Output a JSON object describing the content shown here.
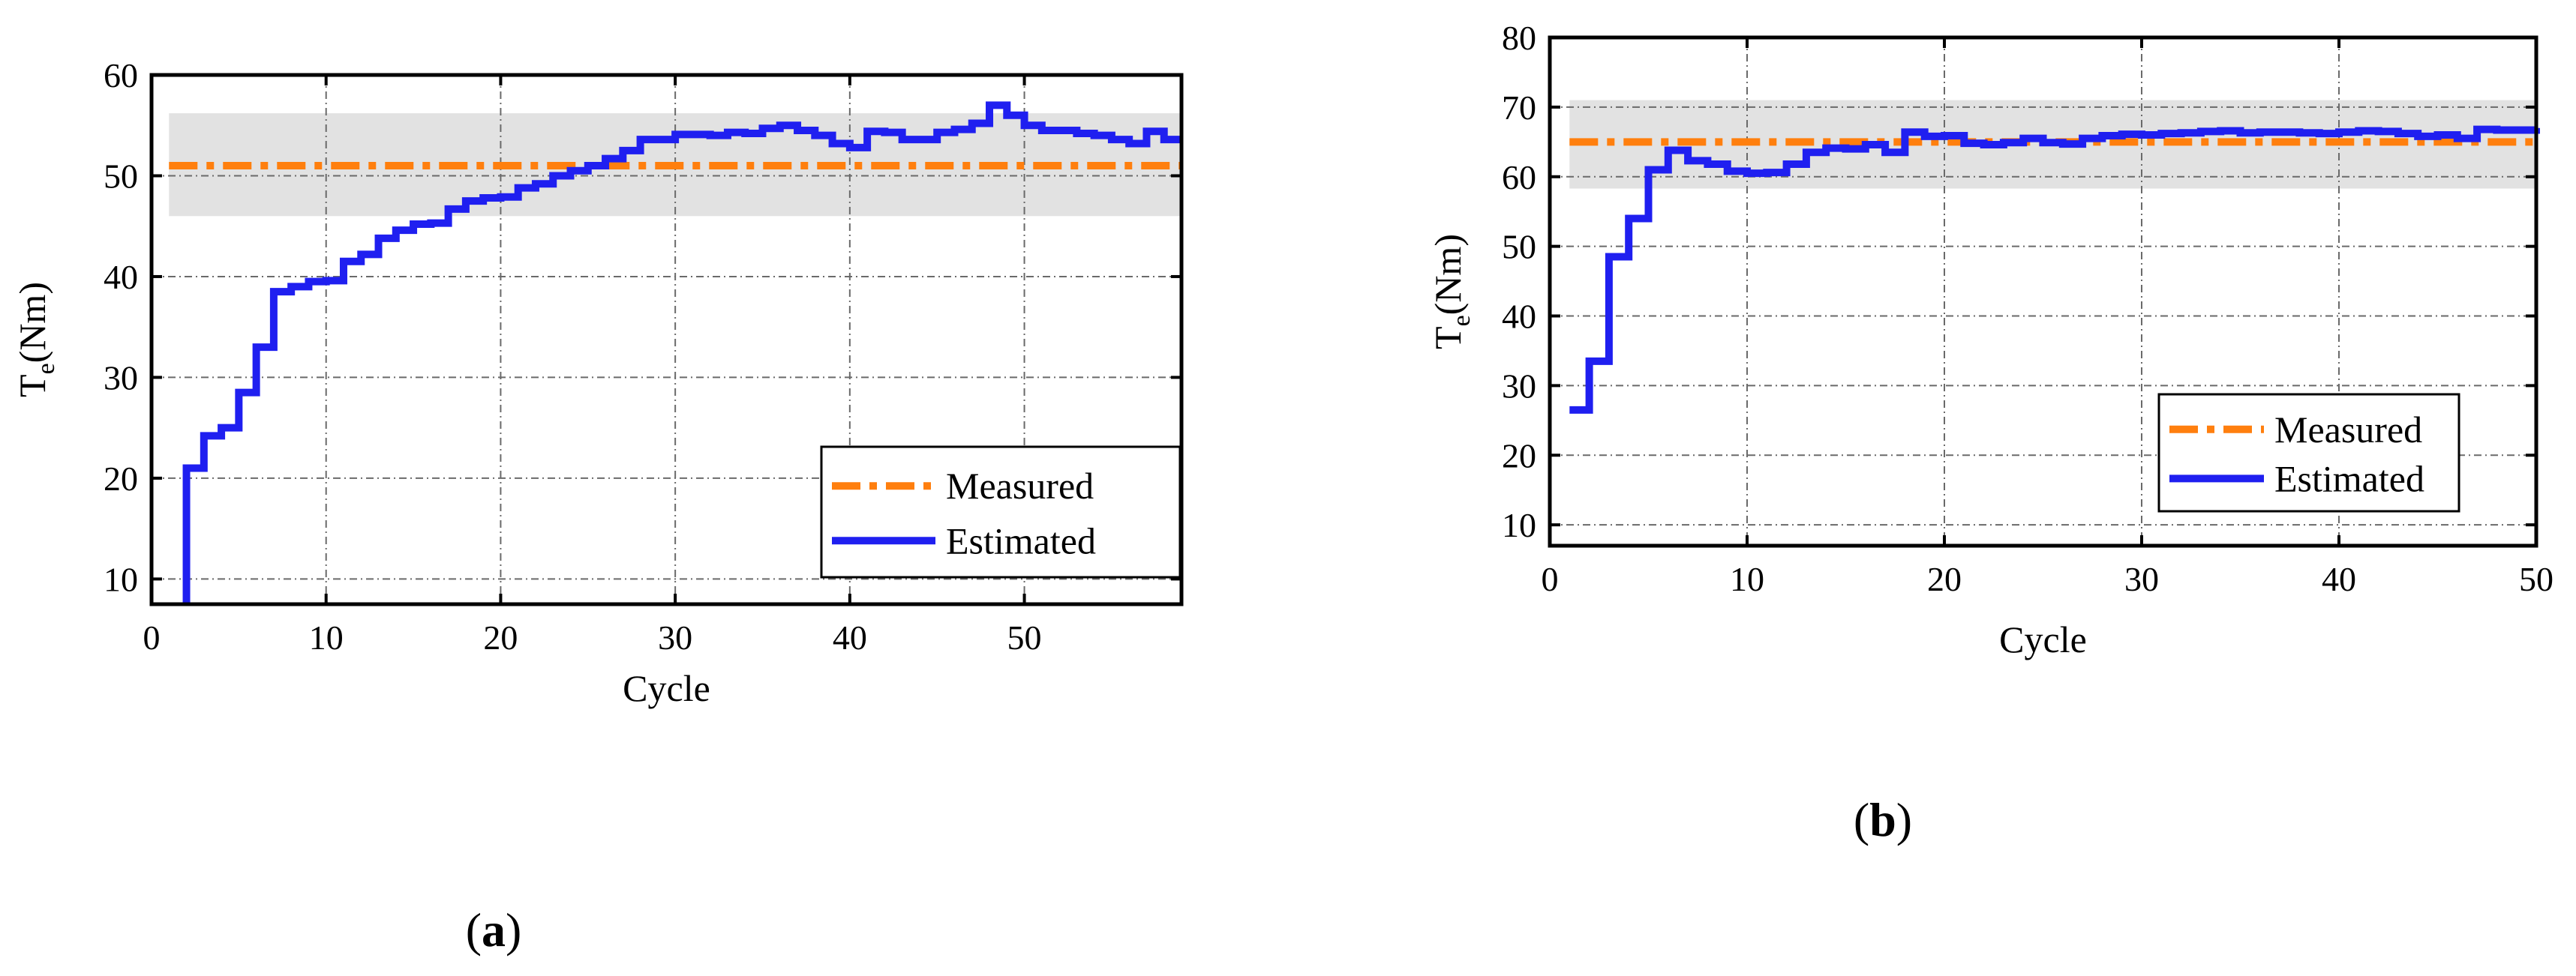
{
  "chart_data": [
    {
      "type": "line",
      "panel_label": "a",
      "xlabel": "Cycle",
      "ylabel_main": "T",
      "ylabel_sub": "e",
      "ylabel_unit": "(Nm)",
      "xlim": [
        0,
        59
      ],
      "ylim": [
        7.5,
        60
      ],
      "xticks": [
        0,
        10,
        20,
        30,
        40,
        50
      ],
      "yticks": [
        10,
        20,
        30,
        40,
        50,
        60
      ],
      "grid": true,
      "band": {
        "low": 46,
        "high": 56.2,
        "x_start": 1,
        "x_end": 59,
        "color": "#e2e2e2"
      },
      "legend_position": "bottom-right",
      "series": [
        {
          "name": "Measured",
          "style": "dash-dot",
          "color": "#ff7f0e",
          "x": [
            1,
            59
          ],
          "values": [
            51,
            51
          ]
        },
        {
          "name": "Estimated",
          "style": "step",
          "color": "#1f1ff0",
          "x": [
            2,
            3,
            4,
            5,
            6,
            7,
            8,
            9,
            10,
            11,
            12,
            13,
            14,
            15,
            16,
            17,
            18,
            19,
            20,
            21,
            22,
            23,
            24,
            25,
            26,
            27,
            28,
            29,
            30,
            31,
            32,
            33,
            34,
            35,
            36,
            37,
            38,
            39,
            40,
            41,
            42,
            43,
            44,
            45,
            46,
            47,
            48,
            49,
            50,
            51,
            52,
            53,
            54,
            55,
            56,
            57,
            58,
            59
          ],
          "values": [
            21,
            24.2,
            25,
            28.5,
            33,
            38.5,
            39,
            39.5,
            39.6,
            41.5,
            42.2,
            43.8,
            44.6,
            45.2,
            45.3,
            46.7,
            47.5,
            47.8,
            47.9,
            48.8,
            49.2,
            50,
            50.5,
            51,
            51.7,
            52.5,
            53.6,
            53.6,
            54.1,
            54.1,
            54,
            54.3,
            54.2,
            54.7,
            55,
            54.5,
            54,
            53.2,
            52.8,
            54.4,
            54.3,
            53.6,
            53.6,
            54.3,
            54.6,
            55.2,
            57,
            56,
            55,
            54.5,
            54.5,
            54.2,
            54,
            53.6,
            53.2,
            54.4,
            53.6,
            53.6
          ]
        }
      ]
    },
    {
      "type": "line",
      "panel_label": "b",
      "xlabel": "Cycle",
      "ylabel_main": "T",
      "ylabel_sub": "e",
      "ylabel_unit": "(Nm)",
      "xlim": [
        0,
        50
      ],
      "ylim": [
        7,
        80
      ],
      "xticks": [
        0,
        10,
        20,
        30,
        40,
        50
      ],
      "yticks": [
        10,
        20,
        30,
        40,
        50,
        60,
        70,
        80
      ],
      "grid": true,
      "band": {
        "low": 58.3,
        "high": 71,
        "x_start": 1,
        "x_end": 50,
        "color": "#e2e2e2"
      },
      "legend_position": "bottom-right",
      "series": [
        {
          "name": "Measured",
          "style": "dash-dot",
          "color": "#ff7f0e",
          "x": [
            1,
            50
          ],
          "values": [
            65,
            65
          ]
        },
        {
          "name": "Estimated",
          "style": "step",
          "color": "#1f1ff0",
          "x": [
            1,
            2,
            3,
            4,
            5,
            6,
            7,
            8,
            9,
            10,
            11,
            12,
            13,
            14,
            15,
            16,
            17,
            18,
            19,
            20,
            21,
            22,
            23,
            24,
            25,
            26,
            27,
            28,
            29,
            30,
            31,
            32,
            33,
            34,
            35,
            36,
            37,
            38,
            39,
            40,
            41,
            42,
            43,
            44,
            45,
            46,
            47,
            48,
            49,
            50
          ],
          "values": [
            26.5,
            33.5,
            48.5,
            54,
            61,
            63.8,
            62.3,
            61.8,
            60.8,
            60.5,
            60.6,
            61.8,
            63.5,
            64.1,
            64,
            64.6,
            63.5,
            66.4,
            65.8,
            65.9,
            64.8,
            64.6,
            64.9,
            65.5,
            64.9,
            64.7,
            65.5,
            65.9,
            66.1,
            66,
            66.2,
            66.3,
            66.5,
            66.6,
            66.3,
            66.4,
            66.4,
            66.3,
            66.2,
            66.4,
            66.6,
            66.5,
            66.2,
            65.8,
            66,
            65.5,
            66.8,
            66.7,
            66.7,
            67
          ]
        }
      ]
    }
  ]
}
